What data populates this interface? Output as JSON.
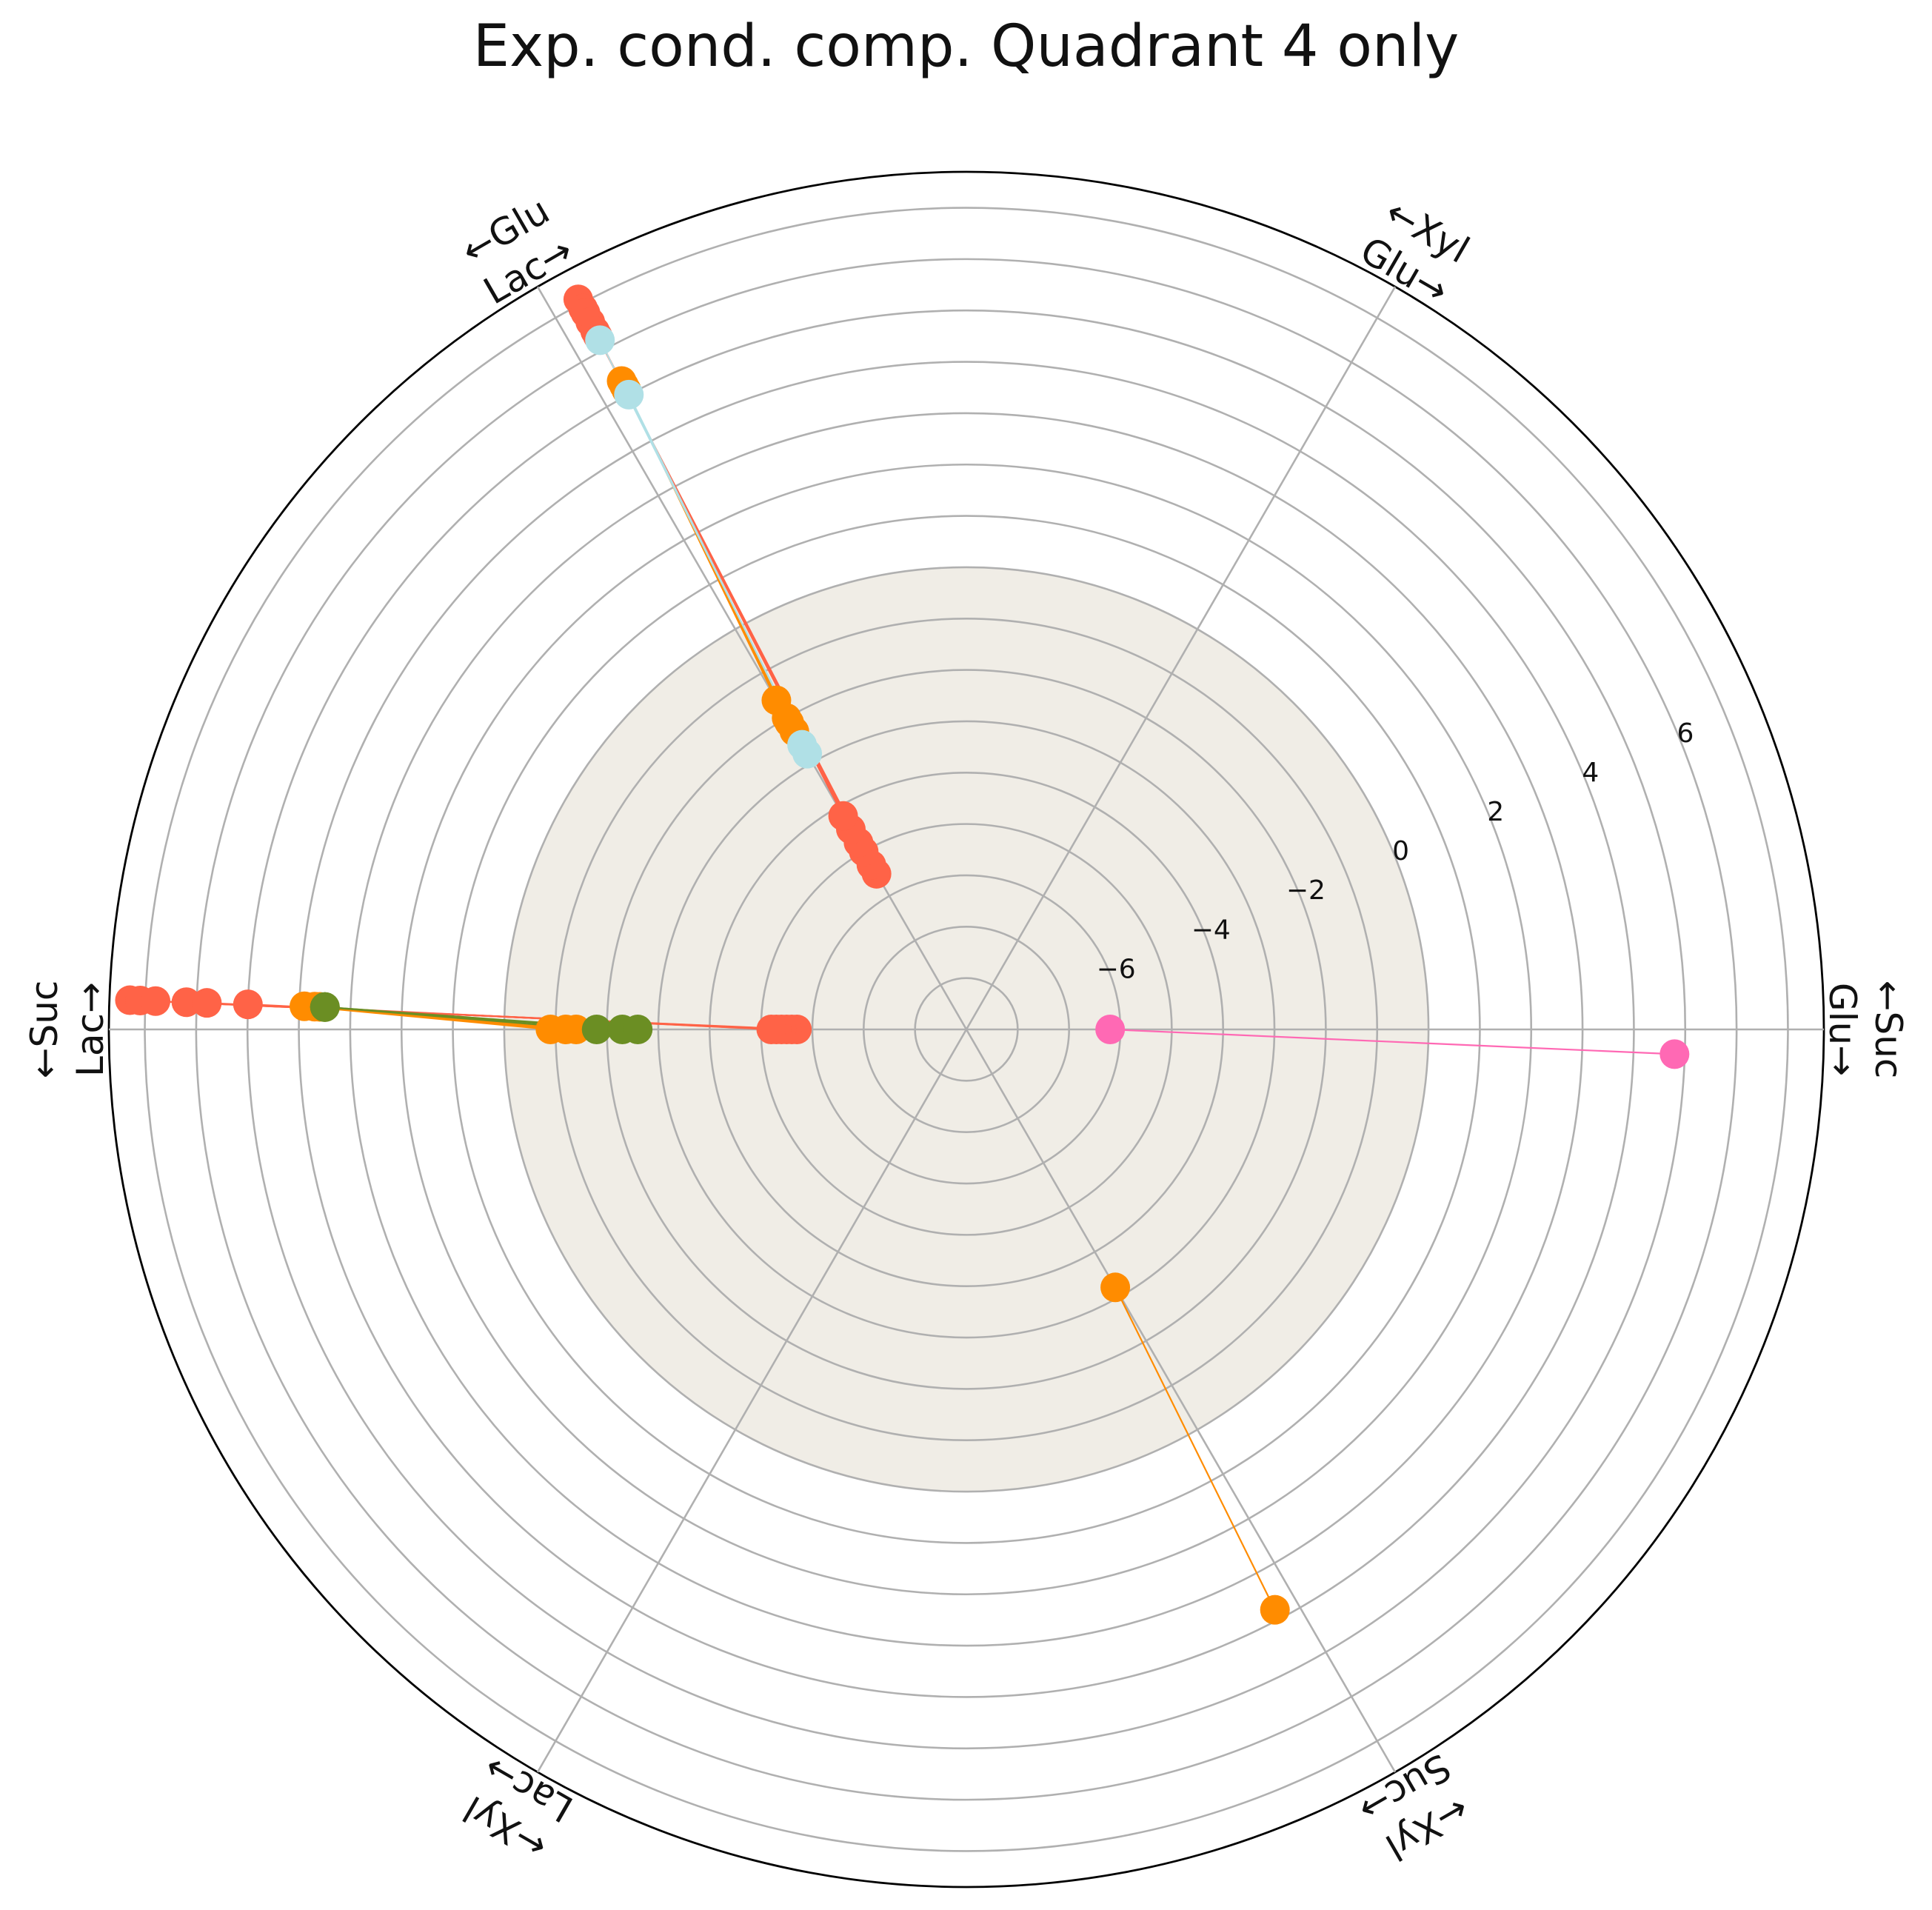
{
  "chart_data": {
    "type": "scatter",
    "subtype": "polar",
    "title": "Exp. cond. comp. Quadrant 4 only",
    "radial_axis": {
      "min": -9,
      "max": 7.7,
      "ticks": [
        -6,
        -4,
        -2,
        0,
        2,
        4,
        6
      ],
      "tick_labels": [
        "−6",
        "−4",
        "−2",
        "0",
        "2",
        "4",
        "6"
      ],
      "shaded_region_max": 0,
      "shaded_color": "#f0ede6"
    },
    "spokes": [
      {
        "angle": 0,
        "labels": [
          "←Suc",
          "Glu→"
        ]
      },
      {
        "angle": 60,
        "labels": [
          "←Xyl",
          "Glu→"
        ]
      },
      {
        "angle": 120,
        "labels": [
          "←Glu",
          "Lac→"
        ]
      },
      {
        "angle": 180,
        "labels": [
          "←Suc",
          "Lac→"
        ]
      },
      {
        "angle": 240,
        "labels": [
          "←Xyl",
          "Lac→"
        ]
      },
      {
        "angle": 300,
        "labels": [
          "←Xyl",
          "Suc→"
        ]
      }
    ],
    "grid": true,
    "colors": {
      "tomato": "#ff6347",
      "orange": "#ff8c00",
      "lightblue": "#b0e0e6",
      "olive": "#6b8e23",
      "pink": "#ff69b4",
      "grid": "#b0b0b0"
    },
    "series": [
      {
        "color": "tomato",
        "spoke": 120,
        "pairs": [
          [
            -5.5,
            7.1
          ],
          [
            -5.3,
            6.9
          ],
          [
            -5.0,
            6.8
          ],
          [
            -4.8,
            6.6
          ],
          [
            -4.5,
            6.4
          ],
          [
            -4.2,
            6.3
          ]
        ]
      },
      {
        "color": "tomato",
        "spoke": 180,
        "pairs": [
          [
            -5.7,
            7.3
          ],
          [
            -5.6,
            7.1
          ],
          [
            -5.5,
            6.8
          ],
          [
            -5.4,
            6.2
          ],
          [
            -5.3,
            5.8
          ],
          [
            -5.2,
            5.0
          ]
        ]
      },
      {
        "color": "orange",
        "spoke": 120,
        "pairs": [
          [
            -2.1,
            5.3
          ],
          [
            -2.3,
            5.1
          ],
          [
            -2.0,
            5.2
          ],
          [
            -1.6,
            5.1
          ]
        ]
      },
      {
        "color": "orange",
        "spoke": 180,
        "pairs": [
          [
            -0.9,
            3.9
          ],
          [
            -1.2,
            3.7
          ],
          [
            -1.4,
            3.6
          ]
        ]
      },
      {
        "color": "lightblue",
        "spoke": 120,
        "pairs": [
          [
            -2.8,
            6.2
          ],
          [
            -2.6,
            5.0
          ]
        ]
      },
      {
        "color": "olive",
        "spoke": 180,
        "pairs": [
          [
            -1.8,
            3.5
          ],
          [
            -2.3,
            3.5
          ],
          [
            -2.6,
            3.5
          ]
        ]
      },
      {
        "color": "pink",
        "spoke": 0,
        "pairs": [
          [
            -6.2,
            4.8
          ]
        ]
      },
      {
        "color": "orange",
        "spoke": 300,
        "pairs": [
          [
            -3.2,
            3.8
          ]
        ]
      }
    ]
  }
}
